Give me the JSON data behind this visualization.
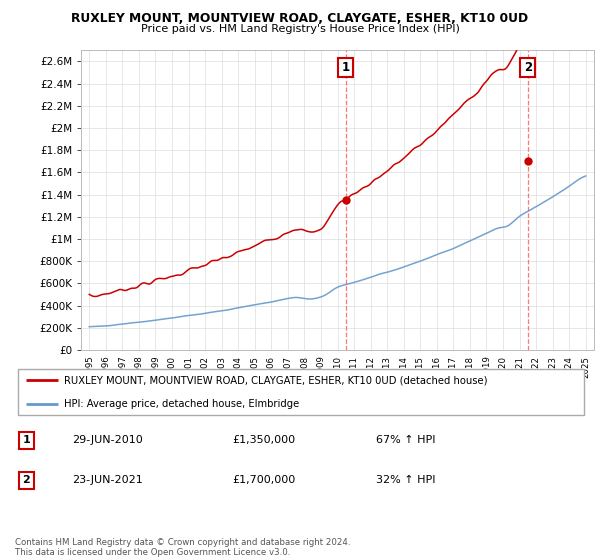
{
  "title": "RUXLEY MOUNT, MOUNTVIEW ROAD, CLAYGATE, ESHER, KT10 0UD",
  "subtitle": "Price paid vs. HM Land Registry's House Price Index (HPI)",
  "ylim": [
    0,
    2700000
  ],
  "yticks": [
    0,
    200000,
    400000,
    600000,
    800000,
    1000000,
    1200000,
    1400000,
    1600000,
    1800000,
    2000000,
    2200000,
    2400000,
    2600000
  ],
  "ytick_labels": [
    "£0",
    "£200K",
    "£400K",
    "£600K",
    "£800K",
    "£1M",
    "£1.2M",
    "£1.4M",
    "£1.6M",
    "£1.8M",
    "£2M",
    "£2.2M",
    "£2.4M",
    "£2.6M"
  ],
  "xlabel_years": [
    "1995",
    "1996",
    "1997",
    "1998",
    "1999",
    "2000",
    "2001",
    "2002",
    "2003",
    "2004",
    "2005",
    "2006",
    "2007",
    "2008",
    "2009",
    "2010",
    "2011",
    "2012",
    "2013",
    "2014",
    "2015",
    "2016",
    "2017",
    "2018",
    "2019",
    "2020",
    "2021",
    "2022",
    "2023",
    "2024",
    "2025"
  ],
  "red_line_color": "#cc0000",
  "blue_line_color": "#6699cc",
  "grid_color": "#dddddd",
  "legend_label_red": "RUXLEY MOUNT, MOUNTVIEW ROAD, CLAYGATE, ESHER, KT10 0UD (detached house)",
  "legend_label_blue": "HPI: Average price, detached house, Elmbridge",
  "annotation1_label": "1",
  "annotation1_date": "29-JUN-2010",
  "annotation1_price": "£1,350,000",
  "annotation1_hpi": "67% ↑ HPI",
  "annotation2_label": "2",
  "annotation2_date": "23-JUN-2021",
  "annotation2_price": "£1,700,000",
  "annotation2_hpi": "32% ↑ HPI",
  "sale1_year": 2010.5,
  "sale2_year": 2021.5,
  "sale1_price": 1350000,
  "sale2_price": 1700000,
  "footer": "Contains HM Land Registry data © Crown copyright and database right 2024.\nThis data is licensed under the Open Government Licence v3.0."
}
